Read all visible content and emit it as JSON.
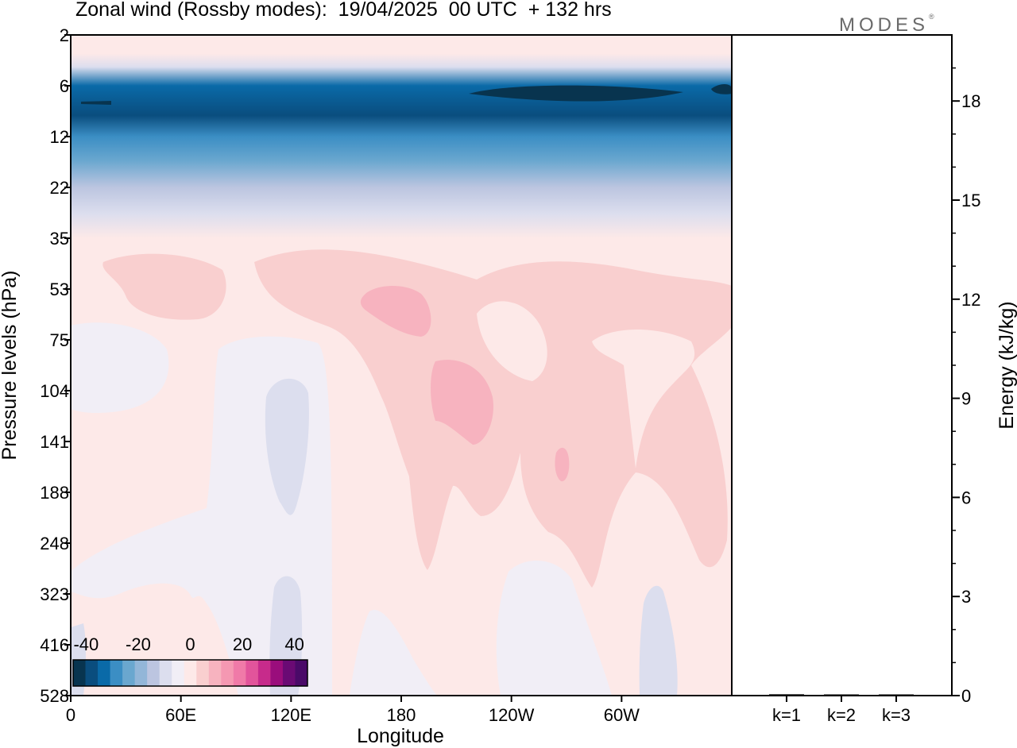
{
  "title": "Zonal wind (Rossby modes):  19/04/2025  00 UTC  + 132 hrs",
  "brand": {
    "name": "MODES",
    "mark": "®"
  },
  "colors": {
    "negative": [
      "#08344f",
      "#0a4d7e",
      "#0a6aa8",
      "#3b8ec4",
      "#6aa7cf",
      "#93b6d8",
      "#bcc5e0",
      "#dcdeee",
      "#f1eef6"
    ],
    "positive": [
      "#fde9e8",
      "#f9cfcf",
      "#f7b3bf",
      "#f598b2",
      "#f07aa8",
      "#e2549b",
      "#c72b8b",
      "#9a0d7c",
      "#6a0a74",
      "#4a0a68"
    ]
  },
  "chart_data": [
    {
      "type": "heatmap",
      "title": "Zonal wind (Rossby modes):  19/04/2025  00 UTC  + 132 hrs",
      "xlabel": "Longitude",
      "ylabel": "Pressure levels (hPa)",
      "x_ticks": [
        "0",
        "60E",
        "120E",
        "180",
        "120W",
        "60W"
      ],
      "x_values": [
        0,
        60,
        120,
        180,
        240,
        300
      ],
      "xlim": [
        0,
        360
      ],
      "y_ticks": [
        "2",
        "6",
        "12",
        "22",
        "35",
        "53",
        "75",
        "104",
        "141",
        "188",
        "248",
        "323",
        "416",
        "528"
      ],
      "colorbar": {
        "ticks": [
          "-40",
          "-20",
          "0",
          "20",
          "40"
        ],
        "values": [
          -40,
          -20,
          0,
          20,
          40
        ],
        "range": [
          -45,
          45
        ],
        "step": 5
      },
      "fields": [
        {
          "level": "2",
          "u": 2
        },
        {
          "level": "3",
          "u": 0
        },
        {
          "level": "4",
          "u": -8
        },
        {
          "level": "6",
          "u": -30
        },
        {
          "level": "9",
          "u": -35
        },
        {
          "level": "12",
          "u": -28
        },
        {
          "level": "16",
          "u": -20
        },
        {
          "level": "22",
          "u": -12
        },
        {
          "level": "28",
          "u": -5
        },
        {
          "level": "35",
          "u": 0
        },
        {
          "level": "53",
          "u": 3
        },
        {
          "level": "75",
          "u": 3
        },
        {
          "level": "104",
          "u": 2
        },
        {
          "level": "141",
          "u": 2
        },
        {
          "level": "188",
          "u": 2
        },
        {
          "level": "248",
          "u": 1
        },
        {
          "level": "323",
          "u": 1
        },
        {
          "level": "416",
          "u": 0
        },
        {
          "level": "528",
          "u": 0
        }
      ]
    },
    {
      "type": "bar",
      "categories": [
        "k=1",
        "k=2",
        "k=3"
      ],
      "values": [
        0.04,
        0.02,
        0.01
      ],
      "ylabel": "Energy (kJ/kg)",
      "y_ticks": [
        "0",
        "3",
        "6",
        "9",
        "12",
        "15",
        "18"
      ],
      "ylim": [
        0,
        20
      ]
    }
  ]
}
